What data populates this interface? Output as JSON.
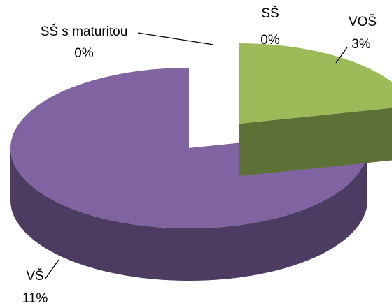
{
  "chart_data": {
    "type": "pie3d",
    "categories": [
      "SŠ s maturitou",
      "SŠ",
      "VOŠ",
      "VŠ"
    ],
    "values": [
      0,
      0,
      3,
      11
    ],
    "value_labels": [
      "0%",
      "0%",
      "3%",
      "11%"
    ],
    "colors": [
      "#4f81bd",
      "#c0504d",
      "#9bbb59",
      "#8064a2"
    ],
    "exploded": [
      false,
      false,
      true,
      false
    ]
  }
}
